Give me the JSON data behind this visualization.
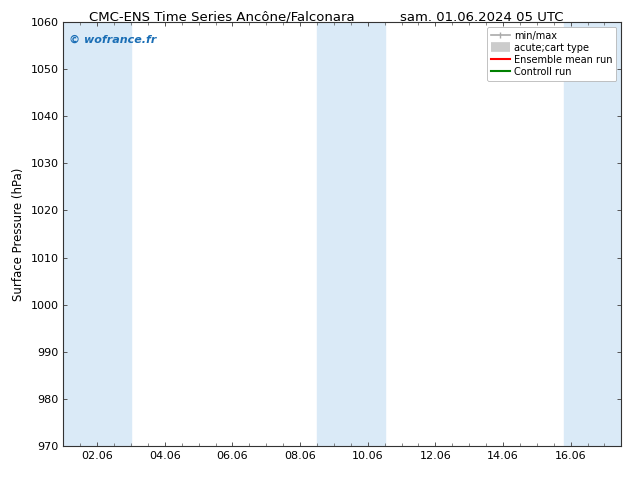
{
  "title": "CMC-ENS Time Series Ancône/Falconara",
  "title_right": "sam. 01.06.2024 05 UTC",
  "ylabel": "Surface Pressure (hPa)",
  "ylim": [
    970,
    1060
  ],
  "yticks": [
    970,
    980,
    990,
    1000,
    1010,
    1020,
    1030,
    1040,
    1050,
    1060
  ],
  "xtick_labels": [
    "02.06",
    "04.06",
    "06.06",
    "08.06",
    "10.06",
    "12.06",
    "14.06",
    "16.06"
  ],
  "xtick_positions": [
    1,
    3,
    5,
    7,
    9,
    11,
    13,
    15
  ],
  "xlim": [
    0,
    16.5
  ],
  "shaded_bands": [
    {
      "x_start": 0.0,
      "x_end": 2.0
    },
    {
      "x_start": 7.5,
      "x_end": 9.5
    },
    {
      "x_start": 14.8,
      "x_end": 16.5
    }
  ],
  "shade_color": "#daeaf7",
  "background_color": "#ffffff",
  "watermark": "© wofrance.fr",
  "watermark_color": "#1a6eb5",
  "legend_entries": [
    {
      "label": "min/max",
      "color": "#aaaaaa",
      "lw": 1.2
    },
    {
      "label": "acute;cart type",
      "color": "#cccccc",
      "lw": 7
    },
    {
      "label": "Ensemble mean run",
      "color": "#ff0000",
      "lw": 1.5
    },
    {
      "label": "Controll run",
      "color": "#008000",
      "lw": 1.5
    }
  ],
  "title_fontsize": 9.5,
  "tick_fontsize": 8,
  "ylabel_fontsize": 8.5,
  "watermark_fontsize": 8,
  "legend_fontsize": 7
}
